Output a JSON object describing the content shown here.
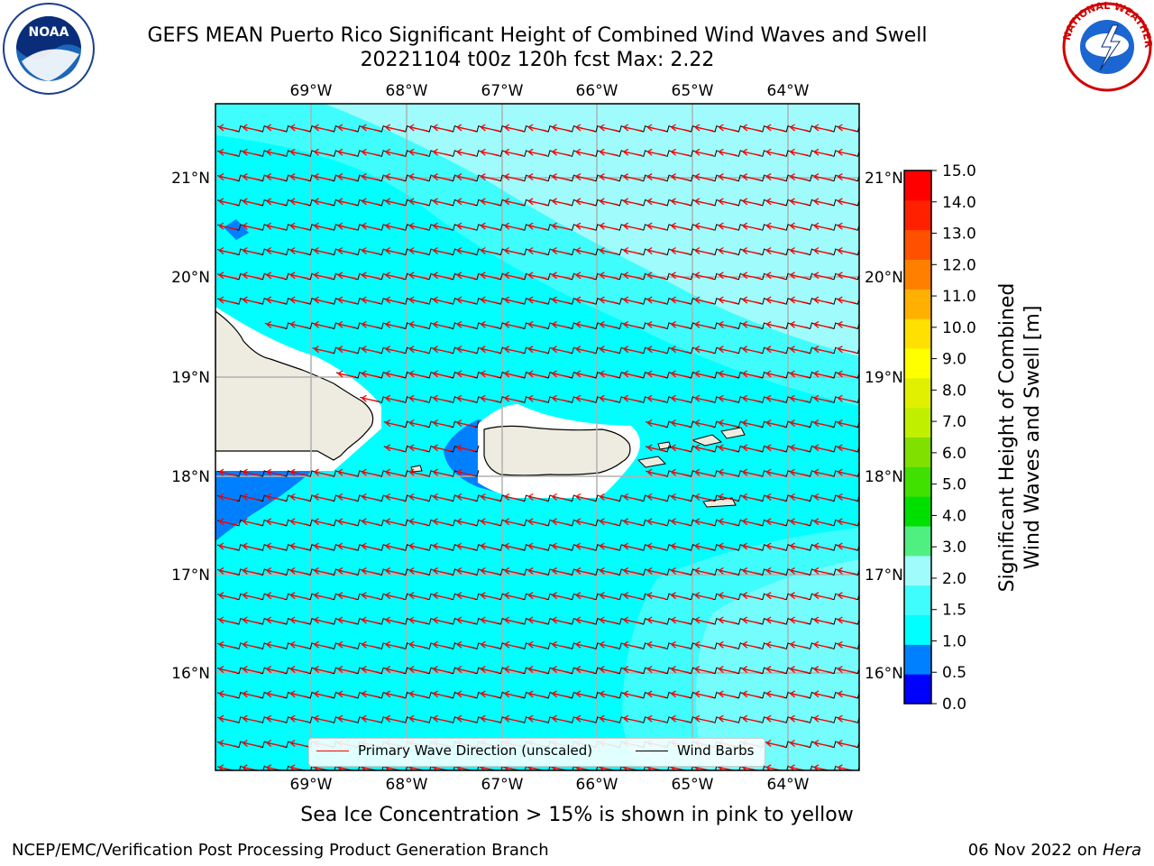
{
  "title": {
    "line1": "GEFS MEAN Puerto Rico Significant Height of Combined Wind Waves and Swell",
    "line2": "20221104 t00z 120h fcst   Max: 2.22"
  },
  "logos": {
    "left": "NOAA",
    "right": "NATIONAL WEATHER SERVICE"
  },
  "map": {
    "lon_labels": [
      "69°W",
      "68°W",
      "67°W",
      "66°W",
      "65°W",
      "64°W"
    ],
    "lat_labels": [
      "21°N",
      "20°N",
      "19°N",
      "18°N",
      "17°N",
      "16°N"
    ],
    "lon_range": [
      -70.0,
      -63.25
    ],
    "lat_range": [
      15.0,
      21.75
    ],
    "max_value": 2.22,
    "land_color": "#eeece0",
    "ocean_colors": {
      "1.0-1.5": "#00ffff",
      "1.5-2.0": "#40fdfd",
      "2.0-3.0": "#a0fcfc",
      "0.5-1.0": "#0080ff"
    }
  },
  "legend": {
    "primary_wave": "Primary Wave Direction (unscaled)",
    "wind_barbs": "Wind Barbs"
  },
  "colorbar": {
    "label_line1": "Significant Height of Combined",
    "label_line2": "Wind Waves and Swell [m]",
    "ticks": [
      "15.0",
      "14.0",
      "13.0",
      "12.0",
      "11.0",
      "10.0",
      "9.0",
      "8.0",
      "7.0",
      "6.0",
      "5.0",
      "4.0",
      "3.0",
      "2.0",
      "1.5",
      "1.0",
      "0.5",
      "0.0"
    ],
    "colors": [
      "#0000ff",
      "#0080ff",
      "#00ffff",
      "#40fdfd",
      "#a0fcfc",
      "#50f080",
      "#00e000",
      "#40e000",
      "#80e000",
      "#c0f000",
      "#e0f000",
      "#ffff00",
      "#ffe000",
      "#ffb000",
      "#ff8000",
      "#ff5000",
      "#ff2000",
      "#ff0000"
    ]
  },
  "sea_ice_note": "Sea Ice Concentration > 15% is shown in pink to yellow",
  "footer": {
    "left": "NCEP/EMC/Verification Post Processing Product Generation Branch",
    "date": "06 Nov 2022 on",
    "host": "Hera"
  }
}
